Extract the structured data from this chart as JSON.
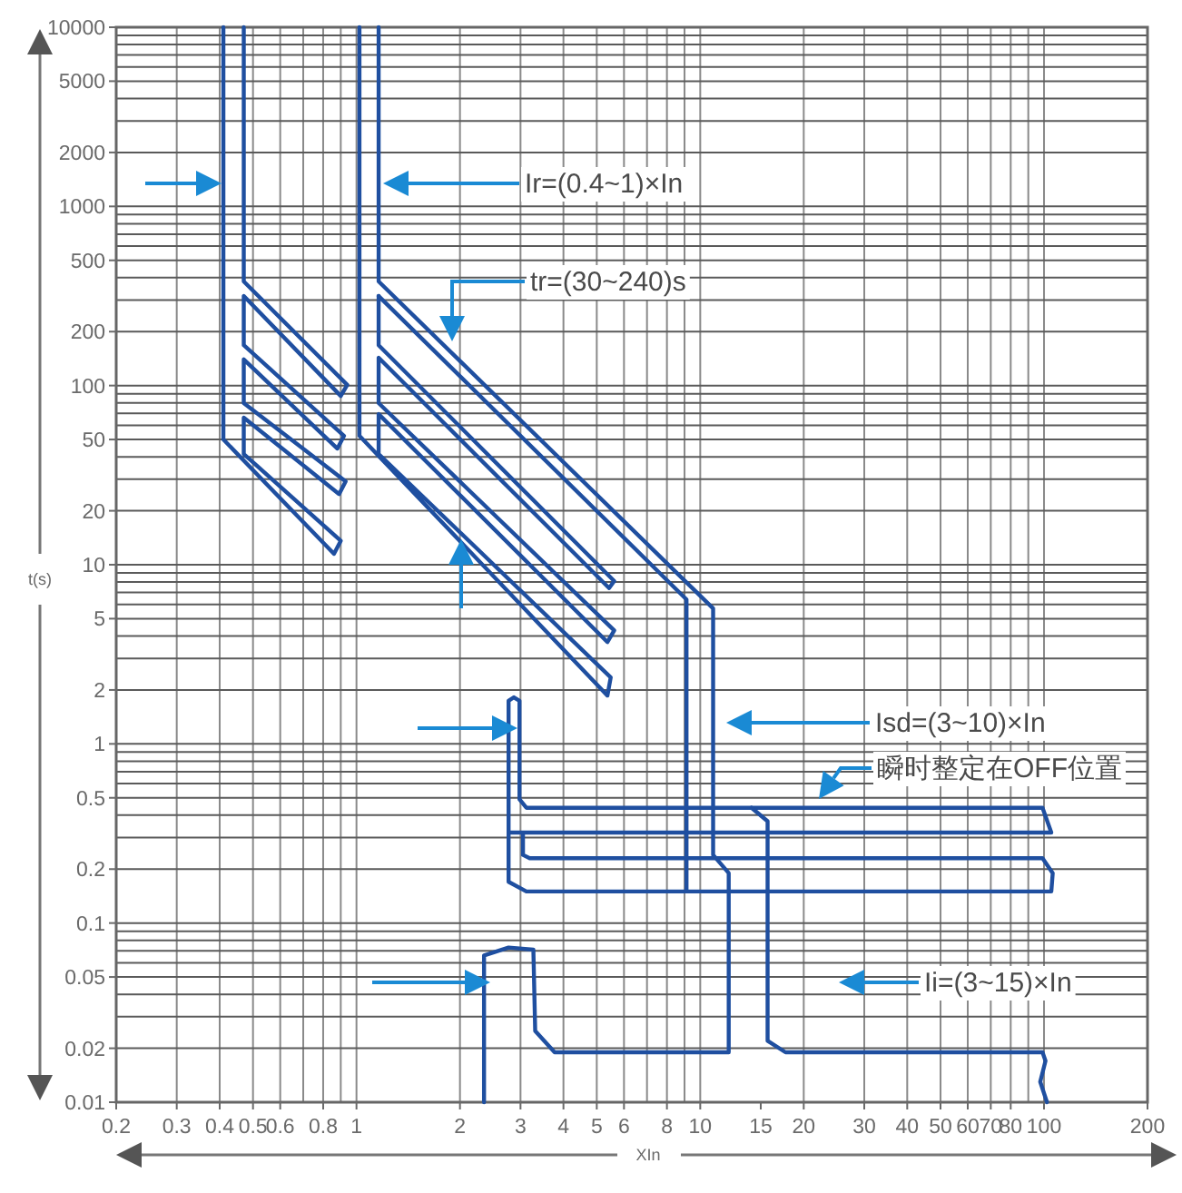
{
  "chart_data": {
    "type": "line",
    "xlabel": "XIn",
    "ylabel": "t(s)",
    "log": "xy",
    "xlim": [
      0.2,
      200
    ],
    "ylim": [
      0.01,
      10000
    ],
    "xticks": [
      0.2,
      0.3,
      0.4,
      0.5,
      0.6,
      0.8,
      1,
      2,
      3,
      4,
      5,
      6,
      8,
      10,
      15,
      20,
      30,
      40,
      50,
      60,
      70,
      80,
      100,
      200
    ],
    "yticks": [
      0.01,
      0.02,
      0.05,
      0.1,
      0.2,
      0.5,
      1,
      2,
      5,
      10,
      20,
      50,
      100,
      200,
      500,
      1000,
      2000,
      5000,
      10000
    ],
    "grid": true,
    "marker": "none",
    "line_style": "solid",
    "annotations": [
      "Ir=(0.4~1)×In",
      "tr=(30~240)s",
      "Isd=(3~10)×In",
      "瞬时整定在OFF位置",
      "Ii=(3~15)×In"
    ],
    "series": [
      {
        "color": "#1f4fa0",
        "x": [
          0.47,
          0.47,
          0.94,
          0.9,
          0.47,
          0.47,
          0.92,
          0.88,
          0.47,
          0.47,
          0.93,
          0.89,
          0.47,
          0.47,
          0.9,
          0.86,
          0.41,
          0.41
        ],
        "values": [
          10000,
          381,
          101,
          87.5,
          316,
          168,
          52.4,
          44.5,
          140,
          79.8,
          29.2,
          24.8,
          66.2,
          41.5,
          13.6,
          11.5,
          50,
          10000
        ]
      },
      {
        "color": "#1f4fa0",
        "x": [
          1.16,
          1.16,
          5.62,
          5.43,
          1.16,
          1.16,
          5.62,
          5.37,
          1.16,
          1.16,
          5.49,
          5.37,
          1.02,
          1.02
        ],
        "values": [
          316,
          168,
          8.1,
          7.4,
          143,
          79.8,
          4.3,
          3.7,
          69.3,
          41.5,
          2.35,
          1.86,
          52.4,
          10000
        ]
      },
      {
        "color": "#1f4fa0",
        "x": [
          1.16,
          1.16,
          10.9,
          10.9,
          12.1,
          12.1,
          3.77,
          3.31,
          3.27,
          2.77,
          2.35,
          2.35
        ],
        "values": [
          10000,
          381,
          5.7,
          0.24,
          0.19,
          0.019,
          0.019,
          0.025,
          0.071,
          0.073,
          0.066,
          0.01
        ]
      },
      {
        "color": "#1f4fa0",
        "x": [
          1.16,
          9.12,
          9.12
        ],
        "values": [
          316,
          6.4,
          0.15
        ]
      },
      {
        "color": "#1f4fa0",
        "x": [
          2.77,
          105,
          99,
          3.12,
          2.98,
          2.98,
          2.87,
          2.77,
          2.77,
          3.12,
          105,
          106,
          99,
          3.19,
          3.05,
          3.05
        ],
        "values": [
          0.32,
          0.32,
          0.44,
          0.44,
          0.49,
          1.74,
          1.82,
          1.74,
          0.17,
          0.15,
          0.15,
          0.19,
          0.23,
          0.23,
          0.24,
          0.32
        ]
      },
      {
        "color": "#1f4fa0",
        "x": [
          14.1,
          15.7,
          15.7,
          17.7,
          99,
          101,
          97.5,
          102
        ],
        "values": [
          0.44,
          0.37,
          0.022,
          0.019,
          0.019,
          0.017,
          0.013,
          0.01
        ]
      }
    ]
  }
}
